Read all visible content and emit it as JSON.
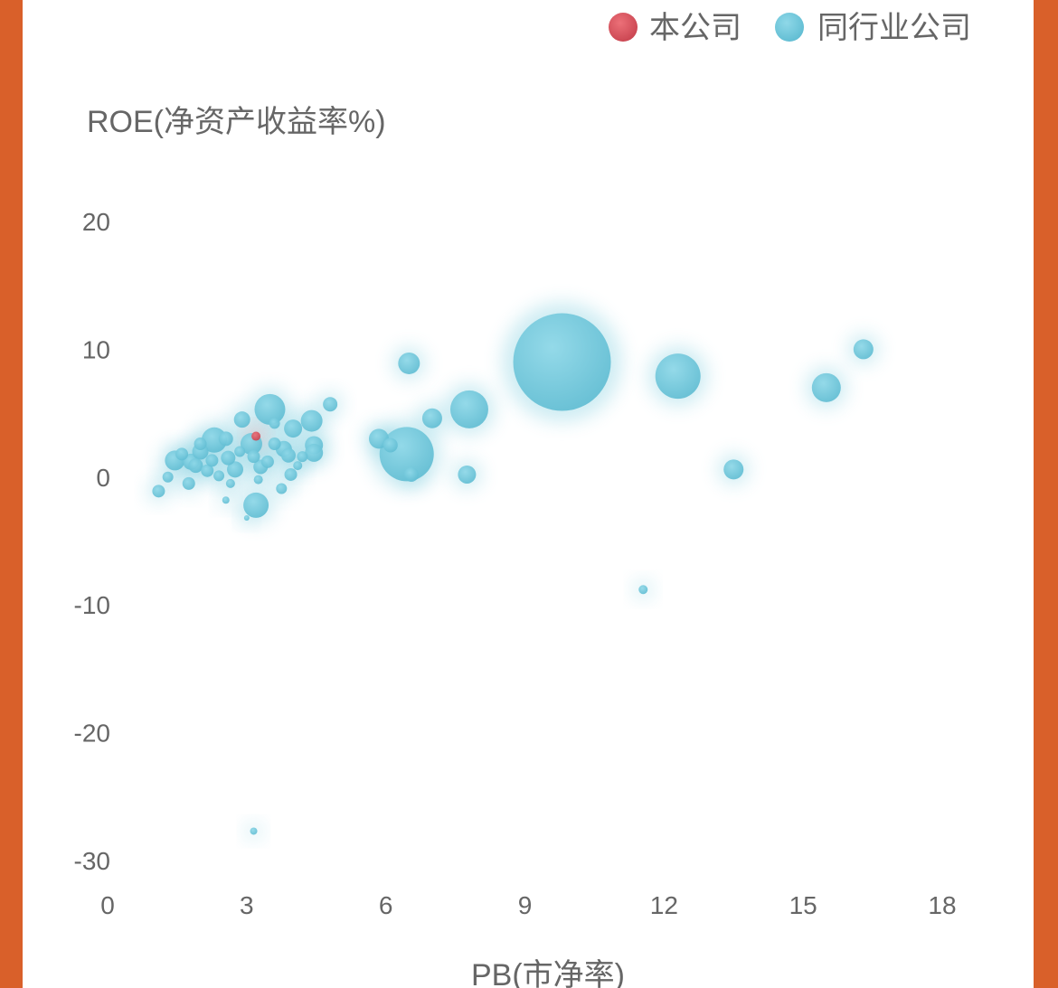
{
  "chart_data": {
    "type": "scatter",
    "title": "",
    "xlabel": "PB(市净率)",
    "ylabel": "ROE(净资产收益率%)",
    "xlim": [
      0,
      18
    ],
    "ylim": [
      -30,
      20
    ],
    "x_ticks": [
      "0",
      "3",
      "6",
      "9",
      "12",
      "15",
      "18"
    ],
    "y_ticks": [
      "20",
      "10",
      "0",
      "-10",
      "-20",
      "-30"
    ],
    "grid": false,
    "legend_position": "top-right",
    "series": [
      {
        "name": "本公司",
        "color": "#d9545e",
        "points": [
          {
            "x": 3.2,
            "y": 3.2,
            "r": 5
          }
        ]
      },
      {
        "name": "同行业公司",
        "color": "#72c9dc",
        "points": [
          {
            "x": 9.8,
            "y": 9.0,
            "r": 54
          },
          {
            "x": 6.45,
            "y": 1.8,
            "r": 30
          },
          {
            "x": 12.3,
            "y": 7.9,
            "r": 25
          },
          {
            "x": 7.8,
            "y": 5.3,
            "r": 21
          },
          {
            "x": 15.5,
            "y": 7.0,
            "r": 16
          },
          {
            "x": 16.3,
            "y": 10.0,
            "r": 11
          },
          {
            "x": 13.5,
            "y": 0.6,
            "r": 11
          },
          {
            "x": 6.5,
            "y": 8.9,
            "r": 12
          },
          {
            "x": 7.0,
            "y": 4.6,
            "r": 11
          },
          {
            "x": 7.75,
            "y": 0.2,
            "r": 10
          },
          {
            "x": 5.85,
            "y": 3.0,
            "r": 11
          },
          {
            "x": 6.1,
            "y": 2.5,
            "r": 8
          },
          {
            "x": 11.55,
            "y": -8.8,
            "r": 5
          },
          {
            "x": 3.5,
            "y": 5.3,
            "r": 17
          },
          {
            "x": 3.2,
            "y": -2.2,
            "r": 14
          },
          {
            "x": 3.15,
            "y": -27.7,
            "r": 4
          },
          {
            "x": 4.8,
            "y": 5.7,
            "r": 8
          },
          {
            "x": 4.4,
            "y": 4.4,
            "r": 12
          },
          {
            "x": 4.45,
            "y": 2.5,
            "r": 10
          },
          {
            "x": 4.45,
            "y": 1.9,
            "r": 10
          },
          {
            "x": 4.0,
            "y": 3.8,
            "r": 10
          },
          {
            "x": 2.3,
            "y": 2.9,
            "r": 14
          },
          {
            "x": 1.45,
            "y": 1.3,
            "r": 11
          },
          {
            "x": 1.8,
            "y": 1.2,
            "r": 9
          },
          {
            "x": 2.0,
            "y": 2.0,
            "r": 9
          },
          {
            "x": 2.6,
            "y": 1.5,
            "r": 8
          },
          {
            "x": 2.9,
            "y": 4.5,
            "r": 9
          },
          {
            "x": 3.1,
            "y": 2.6,
            "r": 12
          },
          {
            "x": 3.8,
            "y": 2.2,
            "r": 9
          },
          {
            "x": 3.3,
            "y": 0.8,
            "r": 8
          },
          {
            "x": 3.9,
            "y": 1.7,
            "r": 8
          },
          {
            "x": 2.75,
            "y": 0.6,
            "r": 9
          },
          {
            "x": 2.15,
            "y": 0.5,
            "r": 7
          },
          {
            "x": 1.9,
            "y": 0.9,
            "r": 8
          },
          {
            "x": 1.3,
            "y": 0.0,
            "r": 6
          },
          {
            "x": 1.1,
            "y": -1.1,
            "r": 7
          },
          {
            "x": 1.75,
            "y": -0.5,
            "r": 7
          },
          {
            "x": 2.55,
            "y": 3.0,
            "r": 8
          },
          {
            "x": 3.6,
            "y": 2.6,
            "r": 7
          },
          {
            "x": 3.95,
            "y": 0.2,
            "r": 7
          },
          {
            "x": 3.75,
            "y": -0.9,
            "r": 6
          },
          {
            "x": 2.55,
            "y": -1.8,
            "r": 4
          },
          {
            "x": 3.0,
            "y": -3.2,
            "r": 3
          },
          {
            "x": 4.1,
            "y": 0.9,
            "r": 5
          },
          {
            "x": 3.6,
            "y": 4.2,
            "r": 6
          },
          {
            "x": 2.4,
            "y": 0.1,
            "r": 6
          },
          {
            "x": 3.15,
            "y": 1.6,
            "r": 7
          },
          {
            "x": 2.0,
            "y": 2.6,
            "r": 7
          },
          {
            "x": 2.85,
            "y": 2.0,
            "r": 6
          },
          {
            "x": 3.45,
            "y": 1.2,
            "r": 7
          },
          {
            "x": 2.25,
            "y": 1.3,
            "r": 7
          },
          {
            "x": 1.6,
            "y": 1.8,
            "r": 7
          },
          {
            "x": 6.55,
            "y": 0.2,
            "r": 8
          },
          {
            "x": 4.2,
            "y": 1.6,
            "r": 6
          },
          {
            "x": 2.65,
            "y": -0.5,
            "r": 5
          },
          {
            "x": 3.25,
            "y": -0.2,
            "r": 5
          }
        ]
      }
    ]
  }
}
